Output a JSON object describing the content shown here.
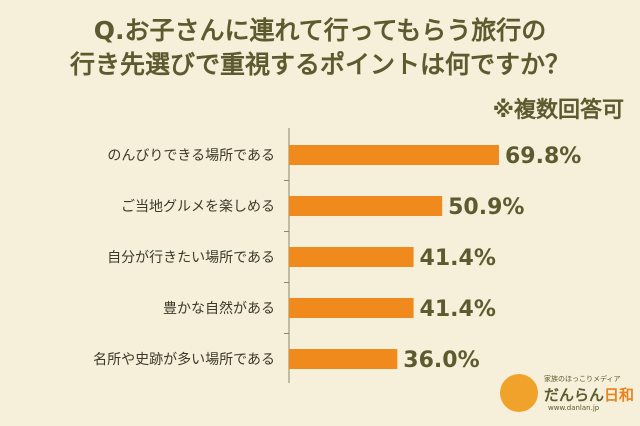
{
  "title_line1": "Q.お子さんに連れて行ってもらう旅行の",
  "title_line2": "行き先選びで重視するポイントは何ですか？",
  "note": "※複数回答可",
  "logo": {
    "tagline": "家族のほっこりメディア",
    "name_part1": "だんらん",
    "name_part2": "日和",
    "url": "www.danlan.jp"
  },
  "colors": {
    "bar": "#f08a1c",
    "text": "#5b5b2f",
    "background": "#f6efd9"
  },
  "chart_data": {
    "type": "bar",
    "orientation": "horizontal",
    "categories": [
      "のんびりできる場所である",
      "ご当地グルメを楽しめる",
      "自分が行きたい場所である",
      "豊かな自然がある",
      "名所や史跡が多い場所である"
    ],
    "values": [
      69.8,
      50.9,
      41.4,
      41.4,
      36.0
    ],
    "value_labels": [
      "69.8%",
      "50.9%",
      "41.4%",
      "41.4%",
      "36.0%"
    ],
    "title": "",
    "xlabel": "",
    "ylabel": "",
    "xlim": [
      0,
      100
    ],
    "grid": false,
    "legend": "none"
  }
}
